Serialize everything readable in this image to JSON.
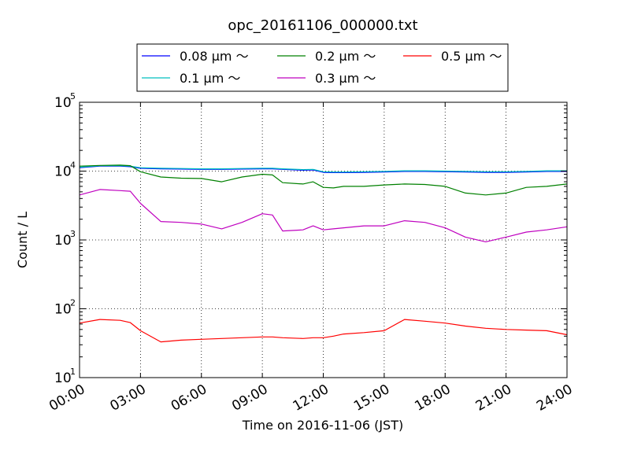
{
  "chart_data": {
    "type": "line",
    "title": "opc_20161106_000000.txt",
    "xlabel": "Time on 2016-11-06 (JST)",
    "ylabel": "Count / L",
    "yscale": "log",
    "ylim": [
      10,
      100000
    ],
    "xlim": [
      "00:00",
      "24:00"
    ],
    "x_tick_labels": [
      "00:00",
      "03:00",
      "06:00",
      "09:00",
      "12:00",
      "15:00",
      "18:00",
      "21:00",
      "24:00"
    ],
    "y_tick_labels": [
      {
        "base": "10",
        "exp": "1"
      },
      {
        "base": "10",
        "exp": "2"
      },
      {
        "base": "10",
        "exp": "3"
      },
      {
        "base": "10",
        "exp": "4"
      },
      {
        "base": "10",
        "exp": "5"
      }
    ],
    "grid": true,
    "legend_position": "top-center",
    "x": [
      "00:00",
      "01:00",
      "02:00",
      "02:30",
      "03:00",
      "04:00",
      "05:00",
      "06:00",
      "07:00",
      "08:00",
      "09:00",
      "09:30",
      "10:00",
      "11:00",
      "11:30",
      "12:00",
      "12:30",
      "13:00",
      "14:00",
      "15:00",
      "16:00",
      "17:00",
      "18:00",
      "19:00",
      "20:00",
      "21:00",
      "22:00",
      "23:00",
      "24:00"
    ],
    "series": [
      {
        "name": "0.08 μm ～",
        "color": "#0000ff",
        "values": [
          11200,
          11800,
          11800,
          11600,
          11000,
          10800,
          10700,
          10600,
          10600,
          10700,
          10800,
          10800,
          10600,
          10300,
          10400,
          9600,
          9500,
          9500,
          9600,
          9700,
          9900,
          9900,
          9800,
          9700,
          9600,
          9600,
          9700,
          9900,
          9900
        ]
      },
      {
        "name": "0.1 μm ～",
        "color": "#00bfbf",
        "values": [
          11400,
          12000,
          12000,
          11800,
          11200,
          11000,
          10900,
          10800,
          10800,
          10900,
          11000,
          11000,
          10800,
          10500,
          10600,
          9800,
          9700,
          9700,
          9800,
          9900,
          10100,
          10100,
          10000,
          9900,
          9800,
          9800,
          9900,
          10100,
          10100
        ]
      },
      {
        "name": "0.2 μm ～",
        "color": "#008000",
        "values": [
          11800,
          12100,
          12200,
          12000,
          9800,
          8200,
          7900,
          7800,
          7000,
          8200,
          9000,
          8800,
          6800,
          6500,
          7000,
          5800,
          5700,
          6000,
          6000,
          6300,
          6500,
          6400,
          6000,
          4800,
          4500,
          4800,
          5800,
          6000,
          6500
        ]
      },
      {
        "name": "0.3 μm ～",
        "color": "#bf00bf",
        "values": [
          4500,
          5400,
          5200,
          5100,
          3400,
          1850,
          1800,
          1700,
          1450,
          1800,
          2400,
          2300,
          1350,
          1400,
          1600,
          1400,
          1450,
          1500,
          1600,
          1600,
          1900,
          1800,
          1500,
          1100,
          940,
          1100,
          1300,
          1400,
          1550
        ]
      },
      {
        "name": "0.5 μm ～",
        "color": "#ff0000",
        "values": [
          62,
          70,
          68,
          63,
          48,
          33,
          35,
          36,
          37,
          38,
          39,
          39,
          38,
          37,
          38,
          38,
          40,
          43,
          45,
          48,
          70,
          66,
          62,
          56,
          52,
          50,
          49,
          48,
          42
        ]
      }
    ]
  }
}
